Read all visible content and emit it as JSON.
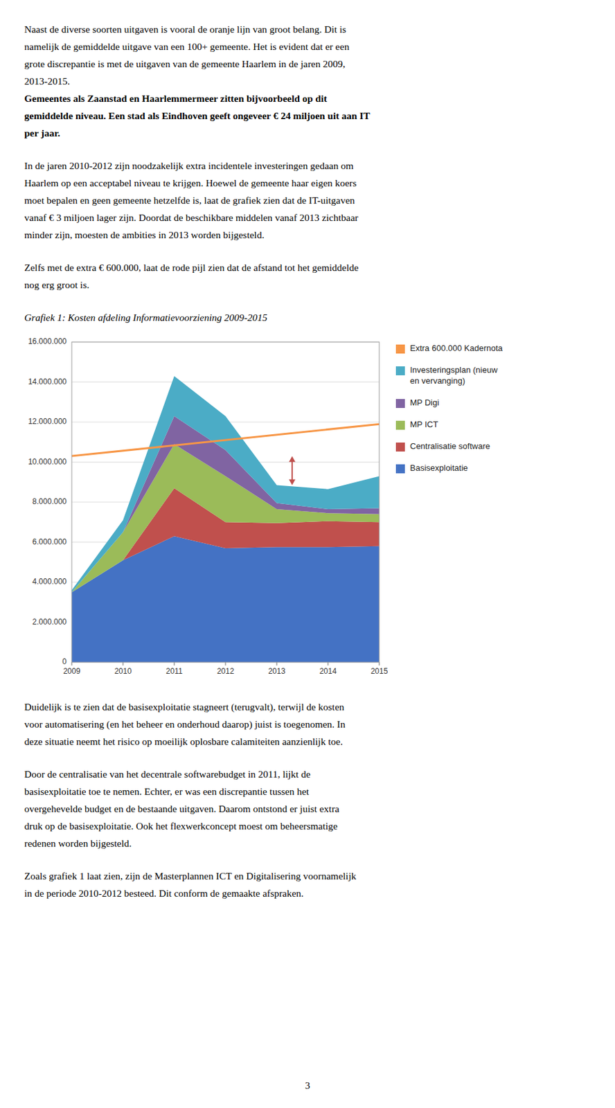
{
  "chart_data": {
    "type": "area",
    "stacked": true,
    "title": "Grafiek 1: Kosten afdeling Informatievoorziening 2009-2015",
    "x": [
      2009,
      2010,
      2011,
      2012,
      2013,
      2014,
      2015
    ],
    "series": [
      {
        "name": "Basisexploitatie",
        "color": "#4472C4",
        "values": [
          3500000,
          5100000,
          6300000,
          5700000,
          5750000,
          5750000,
          5800000
        ]
      },
      {
        "name": "Centralisatie software",
        "color": "#C0504D",
        "values": [
          0,
          0,
          2400000,
          1300000,
          1200000,
          1300000,
          1200000
        ]
      },
      {
        "name": "MP ICT",
        "color": "#9BBB59",
        "values": [
          0,
          1400000,
          2200000,
          2300000,
          700000,
          400000,
          400000
        ]
      },
      {
        "name": "MP Digi",
        "color": "#8064A2",
        "values": [
          0,
          0,
          1400000,
          1300000,
          300000,
          200000,
          300000
        ]
      },
      {
        "name": "Investeringsplan (nieuw\nen vervanging)",
        "color": "#4BACC6",
        "values": [
          100000,
          600000,
          2000000,
          1700000,
          900000,
          1000000,
          1600000
        ]
      },
      {
        "name": "Extra 600.000 Kadernota",
        "type": "line",
        "color": "#F79646",
        "x": [
          2009,
          2015
        ],
        "values": [
          10300000,
          11900000
        ]
      }
    ],
    "annotations": [
      {
        "type": "arrow",
        "x": 2013.3,
        "y_start": 8850000,
        "y_end": 10300000,
        "color": "#C0504D"
      }
    ],
    "xlim": [
      2009,
      2015
    ],
    "xticks": [
      2009,
      2010,
      2011,
      2012,
      2013,
      2014,
      2015
    ],
    "ylim": [
      0,
      16000000
    ],
    "yticks": [
      0,
      {
        "value": 2000000,
        "label": "2.000.000"
      },
      {
        "value": 4000000,
        "label": "4.000.000"
      },
      {
        "value": 6000000,
        "label": "6.000.000"
      },
      {
        "value": 8000000,
        "label": "8.000.000"
      },
      {
        "value": 10000000,
        "label": "10.000.000"
      },
      {
        "value": 12000000,
        "label": "12.000.000"
      },
      {
        "value": 14000000,
        "label": "14.000.000"
      },
      {
        "value": 16000000,
        "label": "16.000.000"
      }
    ],
    "grid": true,
    "legend": "right"
  },
  "text": {
    "above": [
      {
        "lines": [
          "Naast de diverse soorten uitgaven is vooral de oranje lijn van groot belang. Dit is",
          "namelijk de gemiddelde uitgave van een 100+ gemeente. Het is evident dat er een",
          "grote discrepantie is met de uitgaven van de gemeente Haarlem in de jaren 2009,",
          "2013-2015."
        ],
        "bold_lines": [
          "Gemeentes als Zaanstad en Haarlemmermeer zitten bijvoorbeeld op dit",
          "gemiddelde niveau. Een stad als Eindhoven geeft ongeveer € 24 miljoen uit aan IT",
          "per jaar."
        ]
      },
      {
        "lines": [
          "In de jaren 2010-2012 zijn noodzakelijk extra incidentele investeringen gedaan om",
          "Haarlem op een acceptabel niveau te krijgen. Hoewel de gemeente haar eigen koers",
          "moet bepalen en geen gemeente hetzelfde is, laat de grafiek zien dat de IT-uitgaven",
          "vanaf € 3 miljoen lager zijn. Doordat de beschikbare middelen vanaf 2013 zichtbaar",
          "minder zijn, moesten de ambities in 2013 worden bijgesteld."
        ]
      },
      {
        "lines": [
          "Zelfs met de extra € 600.000, laat de rode pijl zien dat de afstand tot het gemiddelde",
          "nog erg groot is."
        ]
      }
    ],
    "below": [
      {
        "lines": [
          "Duidelijk is te zien dat de basisexploitatie stagneert (terugvalt), terwijl de kosten",
          "voor automatisering (en het beheer en onderhoud daarop) juist is toegenomen. In",
          "deze situatie neemt het risico op moeilijk oplosbare calamiteiten aanzienlijk toe."
        ]
      },
      {
        "lines": [
          "Door de centralisatie van het decentrale softwarebudget in 2011, lijkt de",
          "basisexploitatie toe te nemen. Echter, er was een discrepantie tussen het",
          "overgehevelde budget en de bestaande uitgaven. Daarom ontstond er juist extra",
          "druk op de basisexploitatie. Ook het flexwerkconcept moest om beheersmatige",
          "redenen worden bijgesteld."
        ]
      },
      {
        "lines": [
          "Zoals grafiek 1 laat zien, zijn de Masterplannen ICT en Digitalisering voornamelijk",
          "in de periode 2010-2012 besteed. Dit conform de gemaakte afspraken."
        ]
      }
    ],
    "page_number": "3"
  }
}
